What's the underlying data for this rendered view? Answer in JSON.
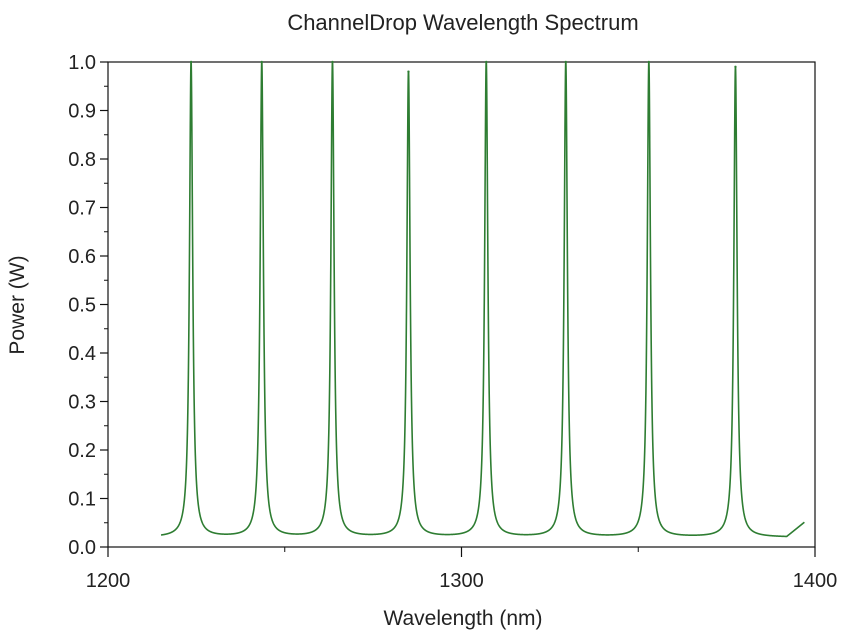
{
  "chart_data": {
    "type": "line",
    "title": "ChannelDrop Wavelength Spectrum",
    "xlabel": "Wavelength (nm)",
    "ylabel": "Power (W)",
    "xlim": [
      1200,
      1400
    ],
    "ylim": [
      0.0,
      1.0
    ],
    "x_ticks": [
      "1200",
      "1300",
      "1400"
    ],
    "y_ticks": [
      "0.0",
      "0.1",
      "0.2",
      "0.3",
      "0.4",
      "0.5",
      "0.6",
      "0.7",
      "0.8",
      "0.9",
      "1.0"
    ],
    "grid": false,
    "line_color": "#2e7d32",
    "x_range_data": [
      1215,
      1397
    ],
    "baseline": 0.02,
    "end_value": 0.05,
    "series": [
      {
        "peaks": [
          {
            "x": 1223.5,
            "y": 1.0
          },
          {
            "x": 1243.5,
            "y": 1.0
          },
          {
            "x": 1263.5,
            "y": 1.0
          },
          {
            "x": 1285.0,
            "y": 0.98
          },
          {
            "x": 1307.0,
            "y": 1.0
          },
          {
            "x": 1329.5,
            "y": 1.0
          },
          {
            "x": 1353.0,
            "y": 1.0
          },
          {
            "x": 1377.5,
            "y": 0.99
          }
        ]
      }
    ]
  }
}
